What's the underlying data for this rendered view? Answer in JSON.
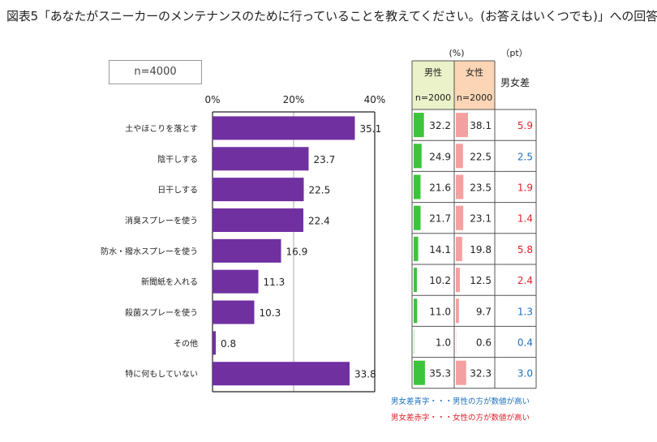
{
  "title": "図表5「あなたがスニーカーのメンテナンスのために行っていることを教えてください。(お答えはいくつでも)」への回答",
  "sample_label": "n=4000",
  "table": {
    "unit_pct": "(%)",
    "unit_pt": "（pt）",
    "male_header": "男性",
    "male_n": "n=2000",
    "female_header": "女性",
    "female_n": "n=2000",
    "diff_header": "男女差"
  },
  "legend_notes": {
    "blue": "男女差青字・・・男性の方が数値が高い",
    "red": "男女差赤字・・・女性の方が数値が高い"
  },
  "colors": {
    "bar": "#7030a0",
    "male_bar": "#3cc43c",
    "female_bar": "#f4a0a0",
    "male_header_bg": "#ebf1c8",
    "female_header_bg": "#fbd5b5",
    "diff_blue": "#1a6fbf",
    "diff_red": "#e0202a"
  },
  "chart_data": {
    "type": "bar",
    "orientation": "horizontal",
    "title": "図表5「あなたがスニーカーのメンテナンスのために行っていることを教えてください。(お答えはいくつでも)」への回答",
    "xlim": [
      0,
      40
    ],
    "x_ticks": [
      "0%",
      "20%",
      "40%"
    ],
    "categories": [
      "土やほこりを落とす",
      "陰干しする",
      "日干しする",
      "消臭スプレーを使う",
      "防水・撥水スプレーを使う",
      "新聞紙を入れる",
      "殺菌スプレーを使う",
      "その他",
      "特に何もしていない"
    ],
    "values": [
      35.1,
      23.7,
      22.5,
      22.4,
      16.9,
      11.3,
      10.3,
      0.8,
      33.8
    ],
    "value_labels": [
      "35.1",
      "23.7",
      "22.5",
      "22.4",
      "16.9",
      "11.3",
      "10.3",
      "0.8",
      "33.8"
    ],
    "male": [
      32.2,
      24.9,
      21.6,
      21.7,
      14.1,
      10.2,
      11.0,
      1.0,
      35.3
    ],
    "male_labels": [
      "32.2",
      "24.9",
      "21.6",
      "21.7",
      "14.1",
      "10.2",
      "11.0",
      "1.0",
      "35.3"
    ],
    "female": [
      38.1,
      22.5,
      23.5,
      23.1,
      19.8,
      12.5,
      9.7,
      0.6,
      32.3
    ],
    "female_labels": [
      "38.1",
      "22.5",
      "23.5",
      "23.1",
      "19.8",
      "12.5",
      "9.7",
      "0.6",
      "32.3"
    ],
    "diff_labels": [
      "5.9",
      "2.5",
      "1.9",
      "1.4",
      "5.8",
      "2.4",
      "1.3",
      "0.4",
      "3.0"
    ],
    "diff_higher": [
      "female",
      "male",
      "female",
      "female",
      "female",
      "female",
      "male",
      "male",
      "male"
    ]
  }
}
